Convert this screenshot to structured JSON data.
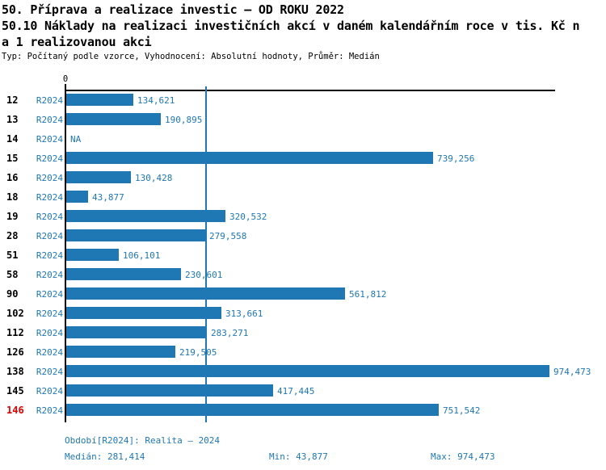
{
  "header": {
    "title_line1": "50. Příprava a realizace investic – OD ROKU 2022",
    "title_line2": "50.10 Náklady na realizaci investičních akcí v daném kalendářním roce v tis. Kč n",
    "title_line3": "a 1 realizovanou akci",
    "subtitle": "Typ: Počítaný podle vzorce, Vyhodnocení: Absolutní hodnoty, Průměr: Medián"
  },
  "chart_data": {
    "type": "bar",
    "orientation": "horizontal",
    "axis_origin_label": "0",
    "series_name": "R2024",
    "categories": [
      "12",
      "13",
      "14",
      "15",
      "16",
      "18",
      "19",
      "28",
      "51",
      "58",
      "90",
      "102",
      "112",
      "126",
      "138",
      "145",
      "146"
    ],
    "rows": [
      {
        "id": "12",
        "period": "R2024",
        "value": 134621,
        "label": "134,621",
        "highlight": false
      },
      {
        "id": "13",
        "period": "R2024",
        "value": 190895,
        "label": "190,895",
        "highlight": false
      },
      {
        "id": "14",
        "period": "R2024",
        "value": null,
        "label": "NA",
        "highlight": false
      },
      {
        "id": "15",
        "period": "R2024",
        "value": 739256,
        "label": "739,256",
        "highlight": false
      },
      {
        "id": "16",
        "period": "R2024",
        "value": 130428,
        "label": "130,428",
        "highlight": false
      },
      {
        "id": "18",
        "period": "R2024",
        "value": 43877,
        "label": "43,877",
        "highlight": false
      },
      {
        "id": "19",
        "period": "R2024",
        "value": 320532,
        "label": "320,532",
        "highlight": false
      },
      {
        "id": "28",
        "period": "R2024",
        "value": 279558,
        "label": "279,558",
        "highlight": false
      },
      {
        "id": "51",
        "period": "R2024",
        "value": 106101,
        "label": "106,101",
        "highlight": false
      },
      {
        "id": "58",
        "period": "R2024",
        "value": 230601,
        "label": "230,601",
        "highlight": false
      },
      {
        "id": "90",
        "period": "R2024",
        "value": 561812,
        "label": "561,812",
        "highlight": false
      },
      {
        "id": "102",
        "period": "R2024",
        "value": 313661,
        "label": "313,661",
        "highlight": false
      },
      {
        "id": "112",
        "period": "R2024",
        "value": 283271,
        "label": "283,271",
        "highlight": false
      },
      {
        "id": "126",
        "period": "R2024",
        "value": 219505,
        "label": "219,505",
        "highlight": false
      },
      {
        "id": "138",
        "period": "R2024",
        "value": 974473,
        "label": "974,473",
        "highlight": false
      },
      {
        "id": "145",
        "period": "R2024",
        "value": 417445,
        "label": "417,445",
        "highlight": false
      },
      {
        "id": "146",
        "period": "R2024",
        "value": 751542,
        "label": "751,542",
        "highlight": true
      }
    ],
    "median_value": 281414,
    "min_value": 43877,
    "max_value": 974473,
    "xlim": [
      0,
      974473
    ],
    "legend_position": "none",
    "grid": false,
    "colors": {
      "bar": "#1f77b4",
      "text_blue": "#1f77b4",
      "highlight": "#dd0000",
      "axis": "#000000"
    }
  },
  "footer": {
    "period_info": "Období[R2024]: Realita – 2024",
    "median": "Medián: 281,414",
    "min": "Min: 43,877",
    "max": "Max: 974,473"
  }
}
